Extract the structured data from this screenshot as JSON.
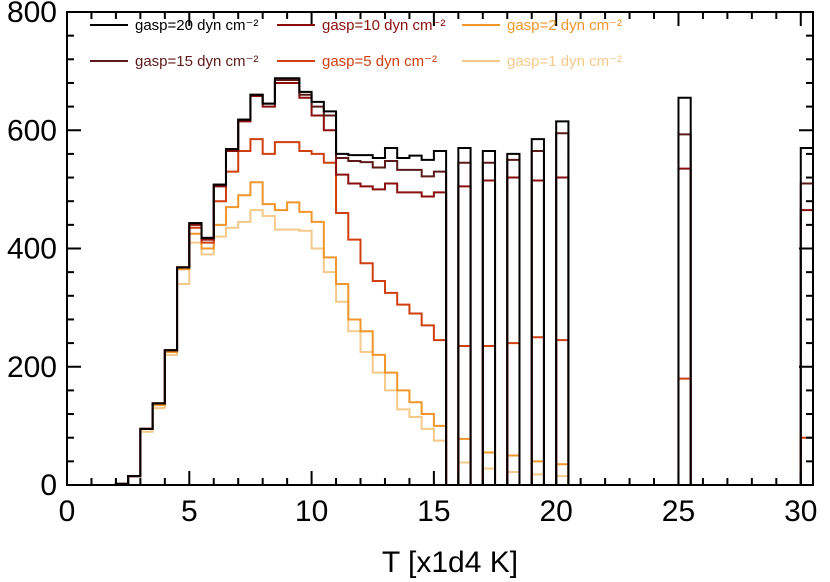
{
  "chart_data": {
    "type": "line",
    "style": "histogram-step",
    "xlabel": "T [x1d4 K]",
    "ylabel": "",
    "xlim": [
      0,
      30.5
    ],
    "ylim": [
      0,
      800
    ],
    "x_ticks": [
      "0",
      "5",
      "10",
      "15",
      "20",
      "25",
      "30"
    ],
    "y_ticks": [
      "0",
      "200",
      "400",
      "600",
      "800"
    ],
    "x_tick_values": [
      0,
      5,
      10,
      15,
      20,
      25,
      30
    ],
    "y_tick_values": [
      0,
      200,
      400,
      600,
      800
    ],
    "bin_width": 0.5,
    "legend_placement": "top-left",
    "grid": false,
    "bins": [
      1.0,
      1.5,
      2.0,
      2.5,
      3.0,
      3.5,
      4.0,
      4.5,
      5.0,
      5.5,
      6.0,
      6.5,
      7.0,
      7.5,
      8.0,
      8.5,
      9.0,
      9.5,
      10.0,
      10.5,
      11.0,
      11.5,
      12.0,
      12.5,
      13.0,
      13.5,
      14.0,
      14.5,
      15.0,
      15.5,
      16.0,
      16.5,
      17.0,
      17.5,
      18.0,
      18.5,
      19.0,
      19.5,
      20.0,
      20.5,
      21.0,
      21.5,
      22.0,
      22.5,
      23.0,
      23.5,
      24.0,
      24.5,
      25.0,
      25.5,
      26.0,
      26.5,
      27.0,
      27.5,
      28.0,
      28.5,
      29.0,
      29.5,
      30.0
    ],
    "series": [
      {
        "name": "gasp=20 dyn cm⁻²",
        "color": "#000000",
        "values": [
          0,
          0,
          2,
          15,
          95,
          138,
          228,
          368,
          443,
          418,
          508,
          568,
          618,
          660,
          645,
          688,
          688,
          665,
          648,
          632,
          560,
          558,
          558,
          553,
          570,
          553,
          557,
          550,
          565,
          0,
          570,
          0,
          565,
          0,
          560,
          0,
          585,
          0,
          615,
          0,
          0,
          0,
          0,
          0,
          0,
          0,
          0,
          0,
          655,
          0,
          0,
          0,
          0,
          0,
          0,
          0,
          0,
          0,
          570
        ]
      },
      {
        "name": "gasp=15 dyn cm⁻²",
        "color": "#5c1a1a",
        "values": [
          0,
          0,
          2,
          15,
          95,
          138,
          228,
          368,
          443,
          418,
          508,
          568,
          618,
          660,
          645,
          685,
          685,
          660,
          640,
          625,
          553,
          548,
          546,
          537,
          548,
          533,
          533,
          522,
          530,
          0,
          545,
          0,
          545,
          0,
          550,
          0,
          565,
          0,
          595,
          0,
          0,
          0,
          0,
          0,
          0,
          0,
          0,
          0,
          593,
          0,
          0,
          0,
          0,
          0,
          0,
          0,
          0,
          0,
          510
        ]
      },
      {
        "name": "gasp=10 dyn cm⁻²",
        "color": "#8b0d0d",
        "values": [
          0,
          0,
          2,
          15,
          95,
          138,
          228,
          368,
          440,
          415,
          505,
          565,
          615,
          658,
          640,
          680,
          680,
          655,
          625,
          600,
          525,
          510,
          505,
          500,
          510,
          495,
          495,
          488,
          495,
          0,
          505,
          0,
          515,
          0,
          520,
          0,
          515,
          0,
          520,
          0,
          0,
          0,
          0,
          0,
          0,
          0,
          0,
          0,
          535,
          0,
          0,
          0,
          0,
          0,
          0,
          0,
          0,
          0,
          465
        ]
      },
      {
        "name": "gasp=5 dyn cm⁻²",
        "color": "#d03f0f",
        "values": [
          0,
          0,
          2,
          15,
          95,
          138,
          228,
          368,
          435,
          410,
          480,
          530,
          565,
          585,
          560,
          580,
          580,
          565,
          560,
          545,
          460,
          415,
          375,
          345,
          325,
          305,
          290,
          270,
          245,
          0,
          235,
          0,
          235,
          0,
          240,
          0,
          250,
          0,
          245,
          0,
          0,
          0,
          0,
          0,
          0,
          0,
          0,
          0,
          180,
          0,
          0,
          0,
          0,
          0,
          0,
          0,
          0,
          0,
          80
        ]
      },
      {
        "name": "gasp=2 dyn cm⁻²",
        "color": "#f0962a",
        "values": [
          0,
          0,
          2,
          15,
          95,
          135,
          225,
          365,
          425,
          400,
          440,
          470,
          490,
          512,
          475,
          465,
          478,
          462,
          445,
          385,
          340,
          280,
          260,
          220,
          190,
          160,
          140,
          120,
          100,
          0,
          78,
          0,
          55,
          0,
          50,
          0,
          40,
          0,
          35,
          0,
          0,
          0,
          0,
          0,
          0,
          0,
          0,
          0,
          0,
          0,
          0,
          0,
          0,
          0,
          0,
          0,
          0,
          0,
          0
        ]
      },
      {
        "name": "gasp=1 dyn cm⁻²",
        "color": "#f5c98a",
        "values": [
          0,
          0,
          2,
          15,
          90,
          130,
          220,
          340,
          410,
          390,
          420,
          435,
          445,
          465,
          455,
          432,
          432,
          430,
          400,
          360,
          310,
          260,
          225,
          190,
          160,
          128,
          115,
          95,
          75,
          0,
          38,
          0,
          28,
          0,
          22,
          0,
          18,
          0,
          15,
          0,
          0,
          0,
          0,
          0,
          0,
          0,
          0,
          0,
          0,
          0,
          0,
          0,
          0,
          0,
          0,
          0,
          0,
          0,
          0
        ]
      }
    ]
  }
}
